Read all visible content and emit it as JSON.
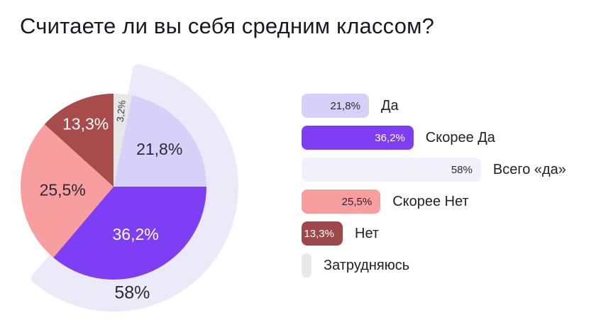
{
  "title": "Считаете ли вы себя средним классом?",
  "chart_data": {
    "type": "pie",
    "title": "Считаете ли вы себя средним классом?",
    "unit": "%",
    "legend_position": "right",
    "segments": [
      {
        "label": "Затрудняюсь",
        "value": 3.2,
        "display": "3,2%",
        "color": "#E8E7E7",
        "label_color": "#3A3844"
      },
      {
        "label": "Да",
        "value": 21.8,
        "display": "21,8%",
        "color": "#D7D0F8",
        "label_color": "#2B2934"
      },
      {
        "label": "Скорее Да",
        "value": 36.2,
        "display": "36,2%",
        "color": "#7D3EF5",
        "label_color": "#FFFFFF"
      },
      {
        "label": "Скорее Нет",
        "value": 25.5,
        "display": "25,5%",
        "color": "#F99E9E",
        "label_color": "#2B2934"
      },
      {
        "label": "Нет",
        "value": 13.3,
        "display": "13,3%",
        "color": "#A74B4B",
        "label_color": "#FFFFFF"
      }
    ],
    "total_yes": {
      "label": "Всего «да»",
      "value": 58,
      "display": "58%",
      "color": "#ECEAF9",
      "label_color": "#2B2934"
    }
  },
  "legend": {
    "items": [
      {
        "label": "Да",
        "value": 21.8,
        "display": "21,8%",
        "color": "#D7D0F8",
        "text_color": "#2B2934"
      },
      {
        "label": "Скорее Да",
        "value": 36.2,
        "display": "36,2%",
        "color": "#7D3EF5",
        "text_color": "#FFFFFF"
      },
      {
        "label": "Всего «да»",
        "value": 58,
        "display": "58%",
        "color": "#F2F0FB",
        "text_color": "#2B2934"
      },
      {
        "label": "Скорее Нет",
        "value": 25.5,
        "display": "25,5%",
        "color": "#F99E9E",
        "text_color": "#2B2934"
      },
      {
        "label": "Нет",
        "value": 13.3,
        "display": "13,3%",
        "color": "#9D494B",
        "text_color": "#FFFFFF"
      },
      {
        "label": "Затрудняюсь",
        "value": 3.2,
        "display": "",
        "color": "#E9E9EB",
        "text_color": "#2B2934"
      }
    ]
  }
}
